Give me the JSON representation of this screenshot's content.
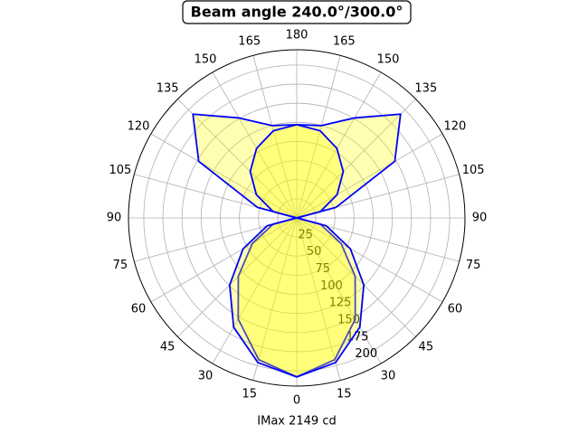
{
  "chart_data": {
    "type": "polar",
    "title": "Beam angle 240.0°/300.0°",
    "xlabel": "IMax 2149 cd",
    "theta": [
      -180,
      -165,
      -150,
      -135,
      -120,
      -105,
      -90,
      -75,
      -60,
      -45,
      -30,
      -15,
      0,
      15,
      30,
      45,
      60,
      75,
      90,
      105,
      120,
      135,
      150,
      165,
      180
    ],
    "series": [
      {
        "color": "#0000ff",
        "fill": "#ffff00",
        "values": [
          122,
          125,
          151,
          192,
          148,
          53,
          0,
          32,
          67,
          108,
          153,
          192,
          208,
          192,
          153,
          108,
          67,
          32,
          0,
          53,
          148,
          192,
          151,
          125,
          122
        ]
      },
      {
        "color": "#0000ff",
        "fill": "#ffff00",
        "values": [
          122,
          118,
          105,
          86,
          61,
          32,
          0,
          40,
          81,
          124,
          165,
          196,
          208,
          196,
          165,
          124,
          81,
          40,
          0,
          32,
          61,
          86,
          105,
          118,
          122
        ]
      }
    ],
    "rlim": [
      0,
      220
    ],
    "rticks": [
      25,
      50,
      75,
      100,
      125,
      150,
      175,
      200
    ],
    "thetaticks": [
      0,
      15,
      30,
      45,
      60,
      75,
      90,
      105,
      120,
      135,
      150,
      165,
      180,
      {
        "value": -165,
        "label": "165"
      },
      {
        "value": -150,
        "label": "150"
      },
      {
        "value": -135,
        "label": "135"
      },
      {
        "value": -120,
        "label": "120"
      },
      {
        "value": -105,
        "label": "105"
      },
      {
        "value": -90,
        "label": "90"
      },
      {
        "value": -75,
        "label": "75"
      },
      {
        "value": -60,
        "label": "60"
      },
      {
        "value": -45,
        "label": "45"
      },
      {
        "value": -30,
        "label": "30"
      },
      {
        "value": -15,
        "label": "15"
      }
    ],
    "grid": true
  }
}
